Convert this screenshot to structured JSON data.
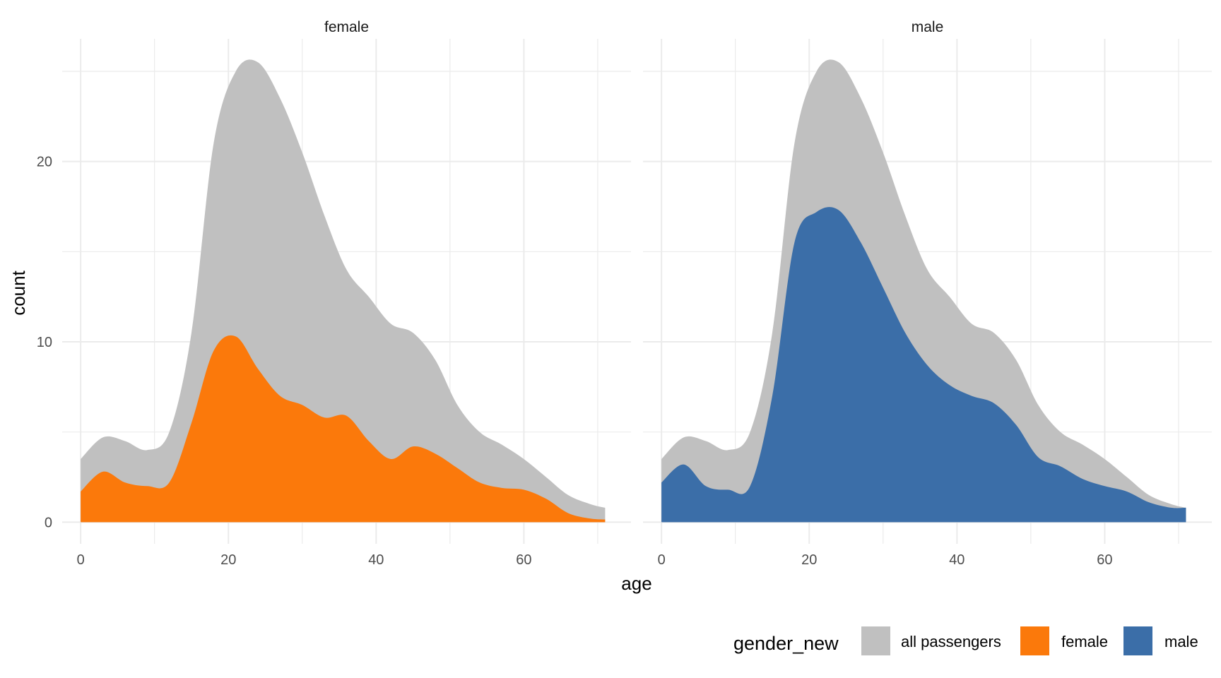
{
  "chart_data": {
    "type": "area",
    "xlabel": "age",
    "ylabel": "count",
    "xlim": [
      -2.5,
      74.5
    ],
    "ylim": [
      -1.2,
      26.8
    ],
    "x_ticks": [
      0,
      20,
      40,
      60
    ],
    "y_ticks": [
      0,
      10,
      20
    ],
    "grid": true,
    "legend": {
      "title": "gender_new",
      "position": "bottom-right",
      "entries": [
        {
          "label": "all passengers",
          "color": "#c0c0c0"
        },
        {
          "label": "female",
          "color": "#fb790b"
        },
        {
          "label": "male",
          "color": "#3b6ea8"
        }
      ]
    },
    "panels": [
      {
        "strip": "female",
        "x": [
          0,
          3,
          6,
          9,
          12,
          15,
          18,
          21,
          24,
          27,
          30,
          33,
          36,
          39,
          42,
          45,
          48,
          51,
          54,
          57,
          60,
          63,
          66,
          69,
          71
        ],
        "series": [
          {
            "name": "all passengers",
            "color": "#c0c0c0",
            "values": [
              3.5,
              4.7,
              4.5,
              4.0,
              5.0,
              10.5,
              21.0,
              25.0,
              25.5,
              23.5,
              20.5,
              17.0,
              14.0,
              12.5,
              11.0,
              10.5,
              9.0,
              6.5,
              5.0,
              4.3,
              3.5,
              2.5,
              1.5,
              1.0,
              0.8
            ]
          },
          {
            "name": "female",
            "color": "#fb790b",
            "values": [
              1.7,
              2.8,
              2.2,
              2.0,
              2.2,
              5.5,
              9.5,
              10.3,
              8.5,
              7.0,
              6.5,
              5.8,
              5.9,
              4.5,
              3.5,
              4.2,
              3.8,
              3.0,
              2.2,
              1.9,
              1.8,
              1.3,
              0.5,
              0.2,
              0.15
            ]
          }
        ]
      },
      {
        "strip": "male",
        "x": [
          0,
          3,
          6,
          9,
          12,
          15,
          18,
          21,
          24,
          27,
          30,
          33,
          36,
          39,
          42,
          45,
          48,
          51,
          54,
          57,
          60,
          63,
          66,
          69,
          71
        ],
        "series": [
          {
            "name": "all passengers",
            "color": "#c0c0c0",
            "values": [
              3.5,
              4.7,
              4.5,
              4.0,
              5.0,
              10.5,
              21.0,
              25.0,
              25.5,
              23.5,
              20.5,
              17.0,
              14.0,
              12.5,
              11.0,
              10.5,
              9.0,
              6.5,
              5.0,
              4.3,
              3.5,
              2.5,
              1.5,
              1.0,
              0.8
            ]
          },
          {
            "name": "male",
            "color": "#3b6ea8",
            "values": [
              2.2,
              3.2,
              2.0,
              1.8,
              2.0,
              7.0,
              15.5,
              17.2,
              17.3,
              15.5,
              13.0,
              10.5,
              8.7,
              7.6,
              7.0,
              6.6,
              5.4,
              3.6,
              3.1,
              2.4,
              2.0,
              1.7,
              1.1,
              0.8,
              0.8
            ]
          }
        ]
      }
    ]
  }
}
